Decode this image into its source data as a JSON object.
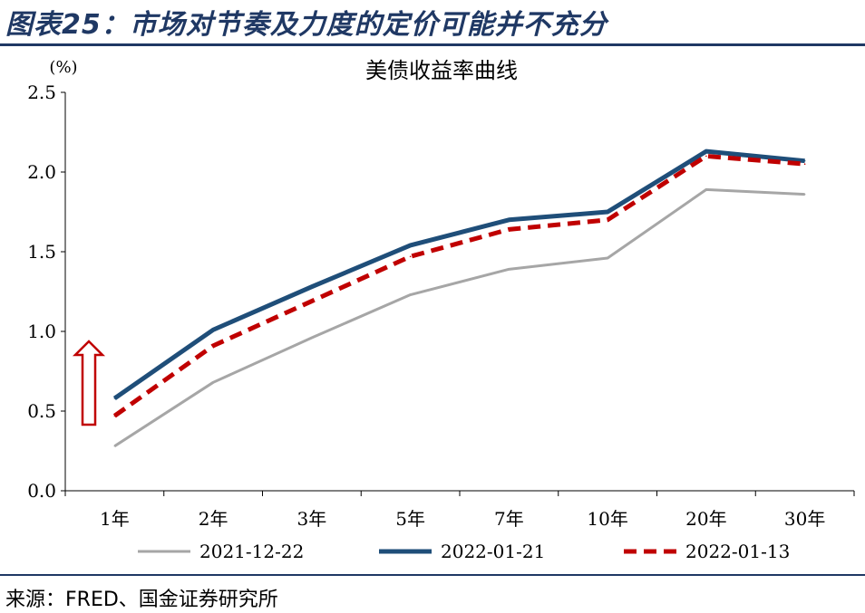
{
  "figure": {
    "title": "图表25：市场对节奏及力度的定价可能并不充分",
    "source": "来源：FRED、国金证券研究所"
  },
  "chart_data": {
    "type": "line",
    "title": "美债收益率曲线",
    "ylabel": "(%)",
    "categories": [
      "1年",
      "2年",
      "3年",
      "5年",
      "7年",
      "10年",
      "20年",
      "30年"
    ],
    "ylim": [
      0,
      2.5
    ],
    "yticks": [
      "0.0",
      "0.5",
      "1.0",
      "1.5",
      "2.0",
      "2.5"
    ],
    "legend_position": "bottom",
    "series": [
      {
        "name": "2021-12-22",
        "color": "#a6a6a6",
        "style": "solid",
        "values": [
          0.28,
          0.68,
          0.96,
          1.23,
          1.39,
          1.46,
          1.89,
          1.86
        ]
      },
      {
        "name": "2022-01-21",
        "color": "#1f4e79",
        "style": "solid",
        "values": [
          0.58,
          1.01,
          1.28,
          1.54,
          1.7,
          1.75,
          2.13,
          2.07
        ]
      },
      {
        "name": "2022-01-13",
        "color": "#c00000",
        "style": "dashed",
        "values": [
          0.47,
          0.91,
          1.19,
          1.47,
          1.64,
          1.7,
          2.1,
          2.05
        ]
      }
    ],
    "annotation": {
      "icon": "up-arrow-icon",
      "color": "#c00000"
    }
  }
}
